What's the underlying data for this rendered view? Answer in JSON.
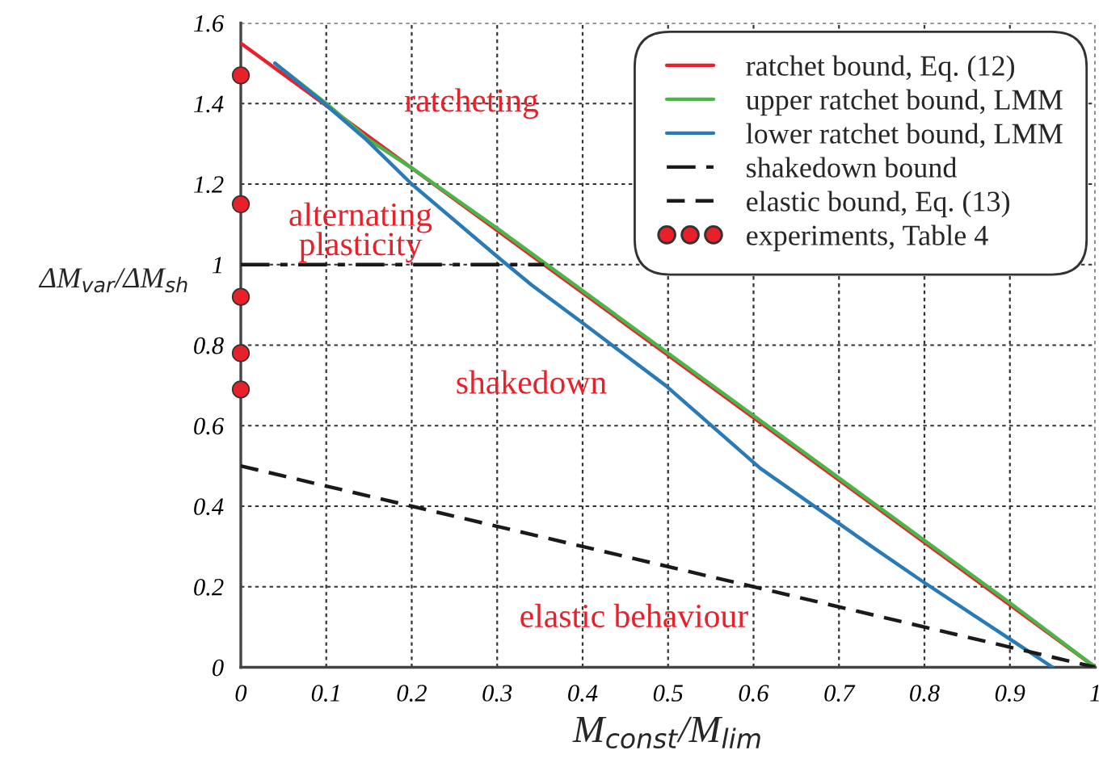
{
  "chart_data": {
    "type": "line",
    "xlabel": "M$_{const}$/M$_{lim}$",
    "ylabel": "ΔM$_{var}$/ΔM$_{sh}$",
    "xlim": [
      0,
      1
    ],
    "ylim": [
      0,
      1.6
    ],
    "xticks": [
      0,
      0.1,
      0.2,
      0.3,
      0.4,
      0.5,
      0.6,
      0.7,
      0.8,
      0.9,
      1
    ],
    "yticks": [
      0,
      0.2,
      0.4,
      0.6,
      0.8,
      1,
      1.2,
      1.4,
      1.6
    ],
    "grid": true,
    "legend": "top right",
    "annotations": [
      "ratcheting",
      "alternating\nplasticity",
      "shakedown",
      "elastic behaviour"
    ],
    "series": [
      {
        "name": "ratchet bound, Eq. (12)",
        "type": "line",
        "color": "#e8202a",
        "line_style": "solid",
        "x": [
          0,
          0.5,
          1
        ],
        "values": [
          1.55,
          0.775,
          0
        ]
      },
      {
        "name": "upper ratchet bound, LMM",
        "type": "line",
        "color": "#4ab548",
        "line_style": "solid",
        "x": [
          0.04,
          0.1,
          0.15,
          0.2,
          0.3,
          0.5,
          0.7,
          0.9,
          1
        ],
        "values": [
          1.5,
          1.4,
          1.31,
          1.24,
          1.09,
          0.78,
          0.47,
          0.16,
          0
        ]
      },
      {
        "name": "lower ratchet bound, LMM",
        "type": "line",
        "color": "#2a7ab8",
        "line_style": "solid",
        "x": [
          0.04,
          0.095,
          0.147,
          0.2,
          0.3,
          0.34,
          0.4,
          0.497,
          0.608,
          0.743,
          0.8,
          0.95
        ],
        "values": [
          1.5,
          1.405,
          1.31,
          1.2,
          1.02,
          0.95,
          0.855,
          0.7,
          0.494,
          0.293,
          0.21,
          0
        ]
      },
      {
        "name": "shakedown bound",
        "type": "line",
        "color": "#1a1a1a",
        "line_style": "dashdot",
        "x": [
          0,
          0.355
        ],
        "values": [
          1,
          1
        ]
      },
      {
        "name": "elastic bound, Eq. (13)",
        "type": "line",
        "color": "#1a1a1a",
        "line_style": "dashed",
        "x": [
          0,
          1
        ],
        "values": [
          0.5,
          0
        ]
      },
      {
        "name": "experiments, Table 4",
        "type": "scatter",
        "color": "#e8202a",
        "marker": "circle",
        "x": [
          0,
          0,
          0,
          0,
          0
        ],
        "values": [
          1.47,
          1.15,
          0.92,
          0.78,
          0.69
        ]
      }
    ]
  }
}
